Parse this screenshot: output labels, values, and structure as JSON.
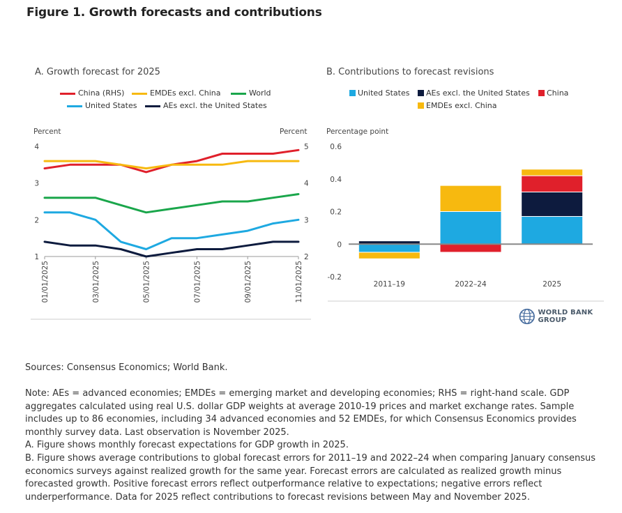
{
  "figure_title": "Figure 1. Growth forecasts and contributions",
  "chart_data": [
    {
      "type": "line",
      "title": "A. Growth forecast for 2025",
      "ylabel_left": "Percent",
      "ylabel_right": "Percent",
      "ylim_left": [
        1,
        4
      ],
      "ylim_right": [
        2,
        5
      ],
      "yticks_left": [
        1,
        2,
        3,
        4
      ],
      "yticks_right": [
        2,
        3,
        4,
        5
      ],
      "x": [
        "01/01/2025",
        "02/01/2025",
        "03/01/2025",
        "04/01/2025",
        "05/01/2025",
        "06/01/2025",
        "07/01/2025",
        "08/01/2025",
        "09/01/2025",
        "10/01/2025",
        "11/01/2025"
      ],
      "xtick_labels": [
        "01/01/2025",
        "03/01/2025",
        "05/01/2025",
        "07/01/2025",
        "09/01/2025",
        "11/01/2025"
      ],
      "series": [
        {
          "name": "China (RHS)",
          "axis": "right",
          "color": "#e0202b",
          "values": [
            4.4,
            4.5,
            4.5,
            4.5,
            4.3,
            4.5,
            4.6,
            4.8,
            4.8,
            4.8,
            4.9
          ]
        },
        {
          "name": "EMDEs excl. China",
          "axis": "left",
          "color": "#f7b90f",
          "values": [
            3.6,
            3.6,
            3.6,
            3.5,
            3.4,
            3.5,
            3.5,
            3.5,
            3.6,
            3.6,
            3.6
          ]
        },
        {
          "name": "World",
          "axis": "left",
          "color": "#1aa64b",
          "values": [
            2.6,
            2.6,
            2.6,
            2.4,
            2.2,
            2.3,
            2.4,
            2.5,
            2.5,
            2.6,
            2.7
          ]
        },
        {
          "name": "United States",
          "axis": "left",
          "color": "#1ea9e1",
          "values": [
            2.2,
            2.2,
            2.0,
            1.4,
            1.2,
            1.5,
            1.5,
            1.6,
            1.7,
            1.9,
            2.0
          ]
        },
        {
          "name": "AEs excl. the United States",
          "axis": "left",
          "color": "#0d1b3e",
          "values": [
            1.4,
            1.3,
            1.3,
            1.2,
            1.0,
            1.1,
            1.2,
            1.2,
            1.3,
            1.4,
            1.4
          ]
        }
      ]
    },
    {
      "type": "bar",
      "stacked": true,
      "title": "B. Contributions to forecast revisions",
      "ylabel": "Percentage point",
      "ylim": [
        -0.2,
        0.6
      ],
      "yticks": [
        -0.2,
        0,
        0.2,
        0.4,
        0.6
      ],
      "categories": [
        "2011–19",
        "2022–24",
        "2025"
      ],
      "series": [
        {
          "name": "United States",
          "color": "#1ea9e1",
          "values": [
            -0.05,
            0.2,
            0.17
          ]
        },
        {
          "name": "AEs excl. the United States",
          "color": "#0d1b3e",
          "values": [
            0.02,
            0.0,
            0.15
          ]
        },
        {
          "name": "China",
          "color": "#e0202b",
          "values": [
            0.0,
            -0.05,
            0.1
          ]
        },
        {
          "name": "EMDEs excl. China",
          "color": "#f7b90f",
          "values": [
            -0.04,
            0.16,
            0.04
          ]
        }
      ]
    }
  ],
  "logo_text": "WORLD BANK GROUP",
  "sources": "Sources: Consensus Economics; World Bank.",
  "note_lines": [
    "Note: AEs = advanced economies; EMDEs = emerging market and developing economies; RHS = right-hand scale. GDP",
    "aggregates calculated using real U.S. dollar GDP weights at average 2010-19 prices and market exchange rates. Sample",
    "includes up to 86 economies, including 34 advanced economies and 52 EMDEs, for which Consensus Economics provides",
    "monthly survey data. Last observation is November 2025.",
    "A. Figure shows monthly forecast expectations for GDP growth in 2025.",
    "B. Figure shows average contributions to global forecast errors for 2011–19 and 2022–24 when comparing January consensus",
    "economics surveys against realized growth for the same year. Forecast errors are calculated as realized growth minus",
    "forecasted growth. Positive forecast errors reflect outperformance relative to expectations; negative errors reflect",
    "underperformance. Data for 2025 reflect contributions to forecast revisions between May and November 2025."
  ]
}
